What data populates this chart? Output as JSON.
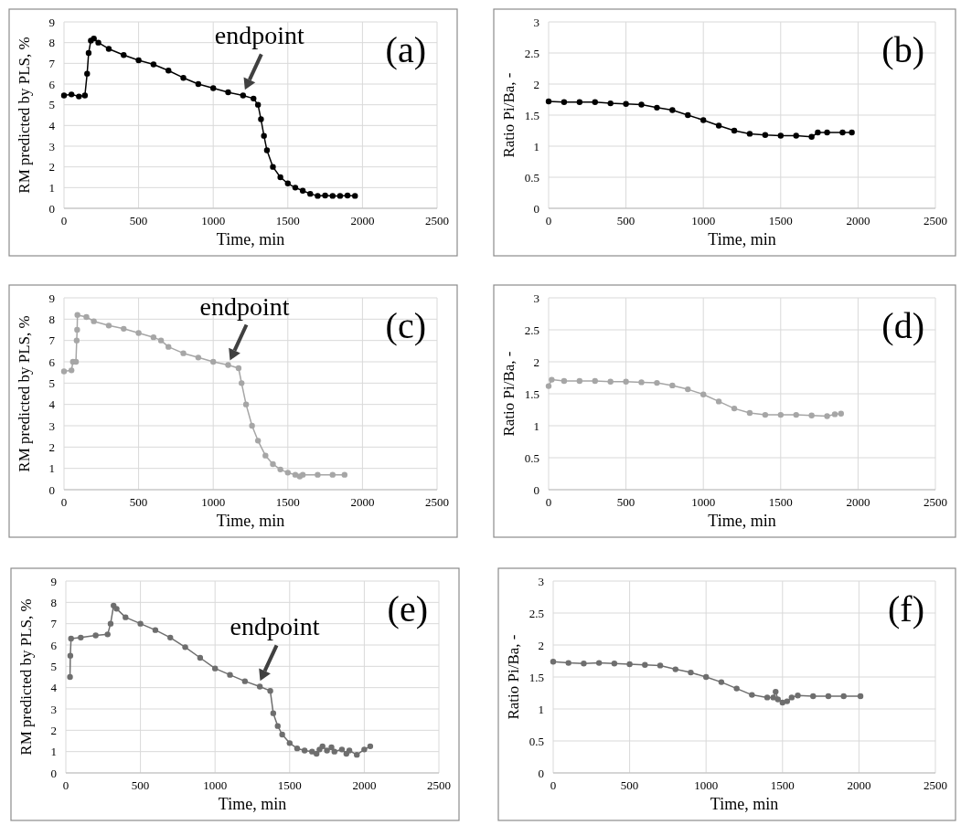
{
  "chart_data": [
    {
      "type": "line",
      "xlabel": "Time, min",
      "ylabel": "RM predicted by PLS, %",
      "annotations": [
        "(a)",
        {
          "text": "endpoint",
          "x": 1200,
          "y": 5.5
        }
      ],
      "xlim": [
        0,
        2500
      ],
      "xticks": [
        0,
        500,
        1000,
        1500,
        2000,
        2500
      ],
      "ylim": [
        0,
        9
      ],
      "yticks": [
        0,
        1,
        2,
        3,
        4,
        5,
        6,
        7,
        8,
        9
      ],
      "grid": true,
      "marker": "circle",
      "line_style": "solid",
      "series": [
        {
          "color": "#000000",
          "x": [
            0,
            50,
            100,
            140,
            155,
            165,
            180,
            200,
            230,
            300,
            400,
            500,
            600,
            700,
            800,
            900,
            1000,
            1100,
            1200,
            1270,
            1300,
            1320,
            1340,
            1360,
            1400,
            1450,
            1500,
            1550,
            1600,
            1650,
            1700,
            1750,
            1800,
            1850,
            1900,
            1950
          ],
          "values": [
            5.45,
            5.5,
            5.4,
            5.45,
            6.5,
            7.5,
            8.1,
            8.2,
            8.0,
            7.7,
            7.4,
            7.15,
            6.95,
            6.65,
            6.3,
            6.0,
            5.8,
            5.6,
            5.45,
            5.3,
            5.0,
            4.3,
            3.5,
            2.8,
            2.0,
            1.5,
            1.2,
            1.0,
            0.85,
            0.7,
            0.6,
            0.62,
            0.6,
            0.6,
            0.62,
            0.6
          ]
        }
      ]
    },
    {
      "type": "line",
      "xlabel": "Time, min",
      "ylabel": "Ratio Pi/Ba, -",
      "annotations": [
        "(b)"
      ],
      "xlim": [
        0,
        2500
      ],
      "xticks": [
        0,
        500,
        1000,
        1500,
        2000,
        2500
      ],
      "ylim": [
        0,
        3
      ],
      "yticks": [
        0,
        0.5,
        1,
        1.5,
        2,
        2.5,
        3
      ],
      "grid": true,
      "marker": "circle",
      "line_style": "solid",
      "series": [
        {
          "color": "#000000",
          "x": [
            0,
            100,
            200,
            300,
            400,
            500,
            600,
            700,
            800,
            900,
            1000,
            1100,
            1200,
            1300,
            1400,
            1500,
            1600,
            1700,
            1740,
            1800,
            1900,
            1960
          ],
          "values": [
            1.72,
            1.71,
            1.71,
            1.71,
            1.69,
            1.68,
            1.67,
            1.62,
            1.58,
            1.5,
            1.42,
            1.33,
            1.25,
            1.2,
            1.18,
            1.17,
            1.17,
            1.15,
            1.22,
            1.22,
            1.22,
            1.22
          ]
        }
      ]
    },
    {
      "type": "line",
      "xlabel": "Time, min",
      "ylabel": "RM predicted by PLS, %",
      "annotations": [
        "(c)",
        {
          "text": "endpoint",
          "x": 1100,
          "y": 5.85
        }
      ],
      "xlim": [
        0,
        2500
      ],
      "xticks": [
        0,
        500,
        1000,
        1500,
        2000,
        2500
      ],
      "ylim": [
        0,
        9
      ],
      "yticks": [
        0,
        1,
        2,
        3,
        4,
        5,
        6,
        7,
        8,
        9
      ],
      "grid": true,
      "marker": "circle",
      "line_style": "solid",
      "series": [
        {
          "color": "#a6a6a6",
          "x": [
            0,
            50,
            60,
            80,
            85,
            88,
            90,
            150,
            200,
            300,
            400,
            500,
            600,
            650,
            700,
            800,
            900,
            1000,
            1100,
            1170,
            1190,
            1220,
            1260,
            1300,
            1350,
            1400,
            1450,
            1500,
            1550,
            1580,
            1600,
            1700,
            1800,
            1880
          ],
          "values": [
            5.55,
            5.6,
            6.0,
            6.0,
            7.0,
            7.5,
            8.2,
            8.1,
            7.9,
            7.7,
            7.55,
            7.35,
            7.15,
            7.0,
            6.7,
            6.4,
            6.2,
            6.0,
            5.85,
            5.7,
            5.0,
            4.0,
            3.0,
            2.3,
            1.6,
            1.2,
            0.95,
            0.8,
            0.7,
            0.62,
            0.7,
            0.7,
            0.7,
            0.7
          ]
        }
      ]
    },
    {
      "type": "line",
      "xlabel": "Time, min",
      "ylabel": "Ratio Pi/Ba, -",
      "annotations": [
        "(d)"
      ],
      "xlim": [
        0,
        2500
      ],
      "xticks": [
        0,
        500,
        1000,
        1500,
        2000,
        2500
      ],
      "ylim": [
        0,
        3
      ],
      "yticks": [
        0,
        0.5,
        1,
        1.5,
        2,
        2.5,
        3
      ],
      "grid": true,
      "marker": "circle",
      "line_style": "solid",
      "series": [
        {
          "color": "#a6a6a6",
          "x": [
            0,
            20,
            100,
            200,
            300,
            400,
            500,
            600,
            700,
            800,
            900,
            1000,
            1100,
            1200,
            1300,
            1400,
            1500,
            1600,
            1700,
            1800,
            1850,
            1890
          ],
          "values": [
            1.62,
            1.72,
            1.7,
            1.7,
            1.7,
            1.69,
            1.69,
            1.68,
            1.67,
            1.63,
            1.57,
            1.49,
            1.38,
            1.27,
            1.2,
            1.17,
            1.17,
            1.17,
            1.16,
            1.15,
            1.18,
            1.19
          ]
        }
      ]
    },
    {
      "type": "line",
      "xlabel": "Time, min",
      "ylabel": "RM predicted by PLS, %",
      "annotations": [
        "(e)",
        {
          "text": "endpoint",
          "x": 1290,
          "y": 4.1
        }
      ],
      "xlim": [
        0,
        2500
      ],
      "xticks": [
        0,
        500,
        1000,
        1500,
        2000,
        2500
      ],
      "ylim": [
        0,
        9
      ],
      "yticks": [
        0,
        1,
        2,
        3,
        4,
        5,
        6,
        7,
        8,
        9
      ],
      "grid": true,
      "marker": "circle",
      "line_style": "solid",
      "series": [
        {
          "color": "#6e6e6e",
          "x": [
            28,
            30,
            35,
            100,
            200,
            280,
            300,
            320,
            340,
            400,
            500,
            600,
            700,
            800,
            900,
            1000,
            1100,
            1200,
            1300,
            1370,
            1390,
            1420,
            1450,
            1500,
            1550,
            1600,
            1650,
            1680,
            1700,
            1720,
            1750,
            1780,
            1800,
            1850,
            1880,
            1900,
            1950,
            2000,
            2040
          ],
          "values": [
            4.5,
            5.5,
            6.3,
            6.35,
            6.45,
            6.5,
            7.0,
            7.85,
            7.7,
            7.3,
            7.0,
            6.7,
            6.35,
            5.9,
            5.4,
            4.9,
            4.6,
            4.3,
            4.05,
            3.85,
            2.8,
            2.2,
            1.8,
            1.4,
            1.15,
            1.05,
            1.0,
            0.9,
            1.1,
            1.25,
            1.05,
            1.2,
            1.0,
            1.1,
            0.9,
            1.05,
            0.85,
            1.1,
            1.25
          ]
        }
      ]
    },
    {
      "type": "line",
      "xlabel": "Time, min",
      "ylabel": "Ratio Pi/Ba, -",
      "annotations": [
        "(f)"
      ],
      "xlim": [
        0,
        2500
      ],
      "xticks": [
        0,
        500,
        1000,
        1500,
        2000,
        2500
      ],
      "ylim": [
        0,
        3
      ],
      "yticks": [
        0,
        0.5,
        1,
        1.5,
        2,
        2.5,
        3
      ],
      "grid": true,
      "marker": "circle",
      "line_style": "solid",
      "series": [
        {
          "color": "#6e6e6e",
          "x": [
            0,
            100,
            200,
            300,
            400,
            500,
            600,
            700,
            800,
            900,
            1000,
            1100,
            1200,
            1300,
            1400,
            1440,
            1455,
            1470,
            1500,
            1530,
            1560,
            1600,
            1700,
            1800,
            1900,
            2010
          ],
          "values": [
            1.74,
            1.72,
            1.71,
            1.72,
            1.71,
            1.7,
            1.69,
            1.68,
            1.62,
            1.57,
            1.5,
            1.42,
            1.32,
            1.22,
            1.18,
            1.18,
            1.27,
            1.15,
            1.1,
            1.12,
            1.18,
            1.21,
            1.2,
            1.2,
            1.2,
            1.2
          ]
        }
      ]
    }
  ]
}
